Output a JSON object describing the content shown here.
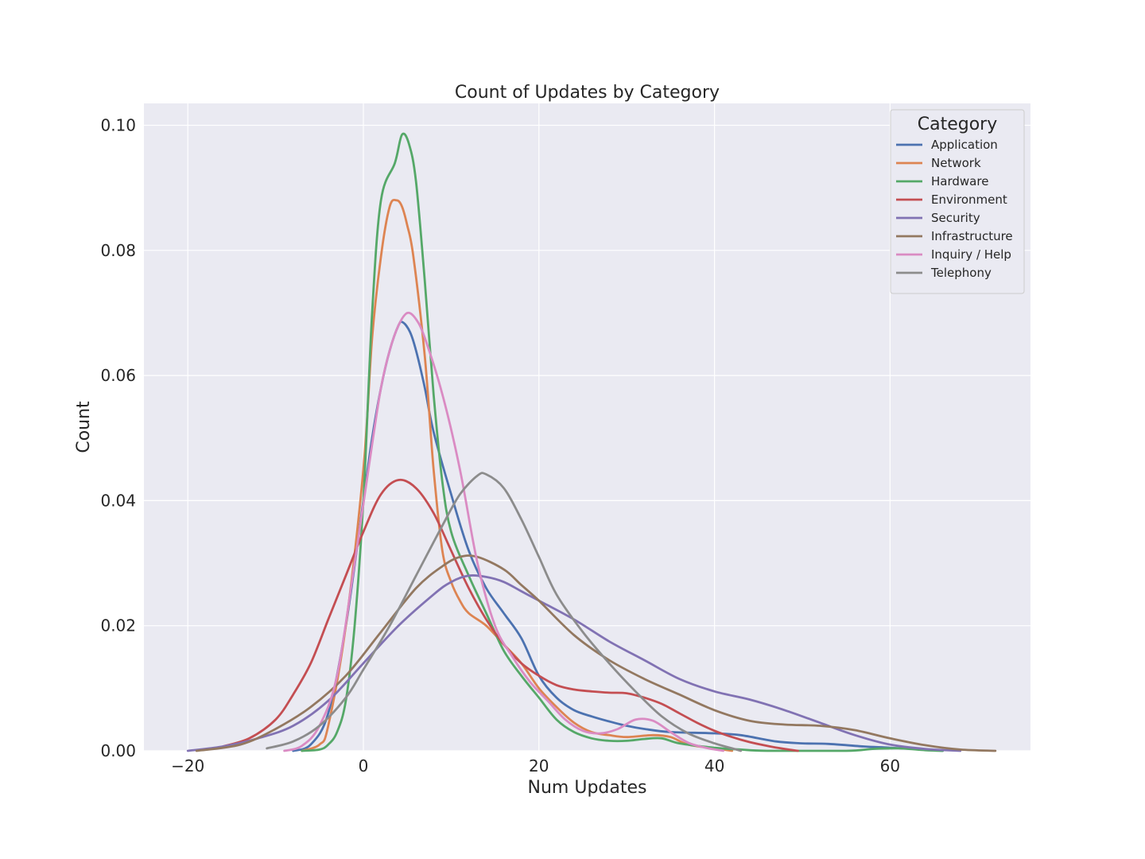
{
  "chart_data": {
    "type": "line",
    "title": "Count of Updates by Category",
    "xlabel": "Num Updates",
    "ylabel": "Count",
    "xlim": [
      -25,
      76
    ],
    "ylim": [
      0,
      0.1035
    ],
    "xticks": [
      -20,
      0,
      20,
      40,
      60
    ],
    "xtick_labels": [
      "−20",
      "0",
      "20",
      "40",
      "60"
    ],
    "yticks": [
      0,
      0.02,
      0.04,
      0.06,
      0.08,
      0.1
    ],
    "ytick_labels": [
      "0.00",
      "0.02",
      "0.04",
      "0.06",
      "0.08",
      "0.10"
    ],
    "grid": true,
    "background": "#eaeaf2",
    "legend": {
      "title": "Category",
      "placement": "top-right"
    },
    "series": [
      {
        "name": "Application",
        "color": "#4c72b0",
        "points": [
          [
            -8,
            0
          ],
          [
            -6,
            0.001
          ],
          [
            -4,
            0.006
          ],
          [
            -2,
            0.02
          ],
          [
            0,
            0.04
          ],
          [
            1,
            0.05
          ],
          [
            2,
            0.058
          ],
          [
            3,
            0.064
          ],
          [
            4,
            0.068
          ],
          [
            4.5,
            0.0685
          ],
          [
            5.3,
            0.067
          ],
          [
            6,
            0.064
          ],
          [
            7,
            0.058
          ],
          [
            8,
            0.051
          ],
          [
            10,
            0.041
          ],
          [
            12,
            0.032
          ],
          [
            14,
            0.026
          ],
          [
            16,
            0.022
          ],
          [
            18,
            0.018
          ],
          [
            20,
            0.012
          ],
          [
            22,
            0.0085
          ],
          [
            24,
            0.0065
          ],
          [
            26,
            0.0055
          ],
          [
            28,
            0.0047
          ],
          [
            30,
            0.004
          ],
          [
            32,
            0.0035
          ],
          [
            35,
            0.003
          ],
          [
            40,
            0.0028
          ],
          [
            43,
            0.0025
          ],
          [
            47,
            0.0015
          ],
          [
            50,
            0.0012
          ],
          [
            53,
            0.0011
          ],
          [
            57,
            0.0007
          ],
          [
            60,
            0.0005
          ],
          [
            64,
            0.0002
          ],
          [
            66,
            0
          ]
        ]
      },
      {
        "name": "Network",
        "color": "#dd8452",
        "points": [
          [
            -7,
            0
          ],
          [
            -5,
            0.001
          ],
          [
            -4,
            0.004
          ],
          [
            -2,
            0.02
          ],
          [
            0,
            0.045
          ],
          [
            1,
            0.066
          ],
          [
            2,
            0.079
          ],
          [
            3,
            0.087
          ],
          [
            3.8,
            0.088
          ],
          [
            4.4,
            0.087
          ],
          [
            5,
            0.084
          ],
          [
            5.7,
            0.079
          ],
          [
            7,
            0.063
          ],
          [
            8,
            0.045
          ],
          [
            9,
            0.032
          ],
          [
            10,
            0.027
          ],
          [
            11,
            0.024
          ],
          [
            12,
            0.022
          ],
          [
            14,
            0.02
          ],
          [
            16,
            0.017
          ],
          [
            18,
            0.014
          ],
          [
            20,
            0.01
          ],
          [
            22,
            0.007
          ],
          [
            24,
            0.0045
          ],
          [
            26,
            0.003
          ],
          [
            28,
            0.0025
          ],
          [
            30,
            0.0022
          ],
          [
            33,
            0.0025
          ],
          [
            35,
            0.0022
          ],
          [
            37,
            0.001
          ],
          [
            40,
            0.0004
          ],
          [
            42,
            0
          ]
        ]
      },
      {
        "name": "Hardware",
        "color": "#55a868",
        "points": [
          [
            -7,
            0
          ],
          [
            -5,
            0.0002
          ],
          [
            -4,
            0.001
          ],
          [
            -3,
            0.003
          ],
          [
            -2,
            0.008
          ],
          [
            -1,
            0.02
          ],
          [
            0,
            0.04
          ],
          [
            1,
            0.07
          ],
          [
            2,
            0.088
          ],
          [
            3.6,
            0.094
          ],
          [
            4.4,
            0.0985
          ],
          [
            5.2,
            0.097
          ],
          [
            6,
            0.091
          ],
          [
            7,
            0.075
          ],
          [
            8,
            0.057
          ],
          [
            9,
            0.043
          ],
          [
            10,
            0.035
          ],
          [
            12,
            0.028
          ],
          [
            14,
            0.022
          ],
          [
            16,
            0.016
          ],
          [
            18,
            0.012
          ],
          [
            20,
            0.0085
          ],
          [
            22,
            0.005
          ],
          [
            24,
            0.003
          ],
          [
            26,
            0.002
          ],
          [
            28,
            0.0016
          ],
          [
            30,
            0.0016
          ],
          [
            32,
            0.0019
          ],
          [
            34,
            0.002
          ],
          [
            36,
            0.0012
          ],
          [
            40,
            0.0005
          ],
          [
            43,
            0.0002
          ],
          [
            46,
            0
          ],
          [
            55,
            0
          ],
          [
            58,
            0.0003
          ],
          [
            61,
            0.0004
          ],
          [
            64,
            0.0001
          ],
          [
            66,
            0
          ]
        ]
      },
      {
        "name": "Environment",
        "color": "#c44e52",
        "points": [
          [
            -16,
            0.0007
          ],
          [
            -13,
            0.002
          ],
          [
            -10,
            0.005
          ],
          [
            -8,
            0.009
          ],
          [
            -6,
            0.014
          ],
          [
            -4,
            0.021
          ],
          [
            -2,
            0.028
          ],
          [
            0,
            0.035
          ],
          [
            2,
            0.041
          ],
          [
            4,
            0.0433
          ],
          [
            6,
            0.042
          ],
          [
            8,
            0.038
          ],
          [
            10,
            0.032
          ],
          [
            12,
            0.026
          ],
          [
            14,
            0.021
          ],
          [
            16,
            0.017
          ],
          [
            18,
            0.014
          ],
          [
            20,
            0.012
          ],
          [
            22,
            0.0105
          ],
          [
            24,
            0.0098
          ],
          [
            26,
            0.0095
          ],
          [
            28,
            0.0093
          ],
          [
            30,
            0.0092
          ],
          [
            32,
            0.0085
          ],
          [
            34,
            0.0075
          ],
          [
            36,
            0.006
          ],
          [
            38,
            0.0045
          ],
          [
            40,
            0.0032
          ],
          [
            42,
            0.0022
          ],
          [
            44,
            0.0014
          ],
          [
            46,
            0.0008
          ],
          [
            48,
            0.0003
          ],
          [
            49.5,
            0
          ]
        ]
      },
      {
        "name": "Security",
        "color": "#8172b3",
        "points": [
          [
            -20,
            0
          ],
          [
            -16,
            0.0007
          ],
          [
            -12,
            0.002
          ],
          [
            -8,
            0.004
          ],
          [
            -4,
            0.008
          ],
          [
            0,
            0.014
          ],
          [
            4,
            0.02
          ],
          [
            8,
            0.025
          ],
          [
            10,
            0.027
          ],
          [
            12,
            0.028
          ],
          [
            14,
            0.0278
          ],
          [
            16,
            0.027
          ],
          [
            18,
            0.0255
          ],
          [
            20,
            0.024
          ],
          [
            24,
            0.021
          ],
          [
            28,
            0.0175
          ],
          [
            32,
            0.0145
          ],
          [
            36,
            0.0115
          ],
          [
            40,
            0.0095
          ],
          [
            44,
            0.0082
          ],
          [
            48,
            0.0065
          ],
          [
            52,
            0.0045
          ],
          [
            56,
            0.0025
          ],
          [
            60,
            0.001
          ],
          [
            64,
            0.0003
          ],
          [
            68,
            0
          ]
        ]
      },
      {
        "name": "Infrastructure",
        "color": "#937860",
        "points": [
          [
            -19,
            0
          ],
          [
            -14,
            0.001
          ],
          [
            -10,
            0.0035
          ],
          [
            -6,
            0.007
          ],
          [
            -2,
            0.012
          ],
          [
            2,
            0.019
          ],
          [
            6,
            0.026
          ],
          [
            9,
            0.0295
          ],
          [
            11,
            0.031
          ],
          [
            13,
            0.031
          ],
          [
            16,
            0.029
          ],
          [
            18,
            0.0265
          ],
          [
            20,
            0.024
          ],
          [
            24,
            0.0185
          ],
          [
            28,
            0.0145
          ],
          [
            32,
            0.0115
          ],
          [
            36,
            0.009
          ],
          [
            40,
            0.0065
          ],
          [
            44,
            0.0048
          ],
          [
            48,
            0.0042
          ],
          [
            52,
            0.004
          ],
          [
            56,
            0.0033
          ],
          [
            60,
            0.002
          ],
          [
            64,
            0.0009
          ],
          [
            68,
            0.0002
          ],
          [
            72,
            0
          ]
        ]
      },
      {
        "name": "Inquiry / Help",
        "color": "#da8bc3",
        "points": [
          [
            -9,
            0
          ],
          [
            -7,
            0.0008
          ],
          [
            -5,
            0.004
          ],
          [
            -3,
            0.012
          ],
          [
            -1,
            0.03
          ],
          [
            1,
            0.049
          ],
          [
            2,
            0.058
          ],
          [
            3,
            0.064
          ],
          [
            4,
            0.068
          ],
          [
            5,
            0.07
          ],
          [
            6,
            0.069
          ],
          [
            7,
            0.066
          ],
          [
            9,
            0.057
          ],
          [
            11,
            0.045
          ],
          [
            13,
            0.03
          ],
          [
            15,
            0.02
          ],
          [
            17,
            0.015
          ],
          [
            19,
            0.011
          ],
          [
            21,
            0.008
          ],
          [
            23,
            0.005
          ],
          [
            25,
            0.0032
          ],
          [
            27,
            0.0028
          ],
          [
            29,
            0.0035
          ],
          [
            31,
            0.005
          ],
          [
            33,
            0.0048
          ],
          [
            35,
            0.003
          ],
          [
            37,
            0.0013
          ],
          [
            39,
            0.0005
          ],
          [
            41,
            0
          ]
        ]
      },
      {
        "name": "Telephony",
        "color": "#8c8c8c",
        "points": [
          [
            -11,
            0.0004
          ],
          [
            -8,
            0.0015
          ],
          [
            -5,
            0.004
          ],
          [
            -2,
            0.0085
          ],
          [
            0,
            0.013
          ],
          [
            3,
            0.02
          ],
          [
            6,
            0.028
          ],
          [
            9,
            0.036
          ],
          [
            11,
            0.041
          ],
          [
            13,
            0.044
          ],
          [
            14,
            0.0442
          ],
          [
            16,
            0.042
          ],
          [
            18,
            0.037
          ],
          [
            20,
            0.031
          ],
          [
            22,
            0.025
          ],
          [
            25,
            0.019
          ],
          [
            28,
            0.014
          ],
          [
            31,
            0.0095
          ],
          [
            34,
            0.0055
          ],
          [
            37,
            0.0028
          ],
          [
            40,
            0.0012
          ],
          [
            42,
            0.0004
          ],
          [
            43,
            0
          ]
        ]
      }
    ]
  }
}
